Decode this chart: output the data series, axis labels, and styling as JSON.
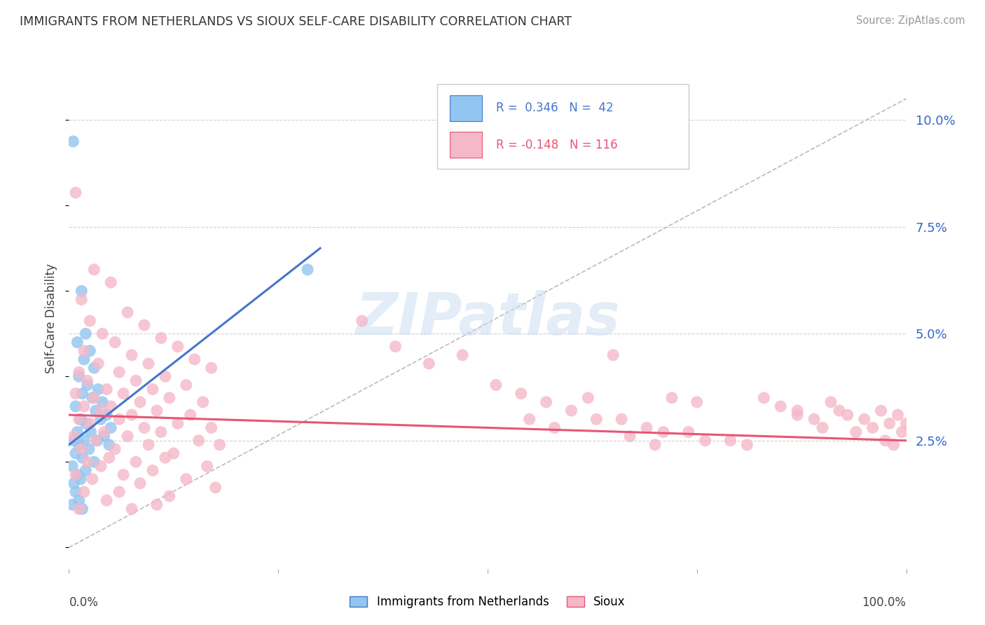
{
  "title": "IMMIGRANTS FROM NETHERLANDS VS SIOUX SELF-CARE DISABILITY CORRELATION CHART",
  "source": "Source: ZipAtlas.com",
  "ylabel": "Self-Care Disability",
  "right_yticks": [
    "10.0%",
    "7.5%",
    "5.0%",
    "2.5%"
  ],
  "right_ytick_vals": [
    0.1,
    0.075,
    0.05,
    0.025
  ],
  "xlim": [
    0.0,
    1.0
  ],
  "ylim": [
    -0.005,
    0.112
  ],
  "background_color": "#ffffff",
  "grid_color": "#cccccc",
  "watermark": "ZIPatlas",
  "blue_color": "#92C5F0",
  "pink_color": "#F5B8C8",
  "blue_line_color": "#4477CC",
  "pink_line_color": "#E85575",
  "diag_line_color": "#BBBBBB",
  "netherlands_points": [
    [
      0.005,
      0.095
    ],
    [
      0.015,
      0.06
    ],
    [
      0.02,
      0.05
    ],
    [
      0.01,
      0.048
    ],
    [
      0.025,
      0.046
    ],
    [
      0.018,
      0.044
    ],
    [
      0.03,
      0.042
    ],
    [
      0.012,
      0.04
    ],
    [
      0.022,
      0.038
    ],
    [
      0.035,
      0.037
    ],
    [
      0.016,
      0.036
    ],
    [
      0.028,
      0.035
    ],
    [
      0.04,
      0.034
    ],
    [
      0.008,
      0.033
    ],
    [
      0.032,
      0.032
    ],
    [
      0.045,
      0.031
    ],
    [
      0.014,
      0.03
    ],
    [
      0.038,
      0.03
    ],
    [
      0.02,
      0.029
    ],
    [
      0.05,
      0.028
    ],
    [
      0.01,
      0.027
    ],
    [
      0.026,
      0.027
    ],
    [
      0.042,
      0.026
    ],
    [
      0.006,
      0.025
    ],
    [
      0.018,
      0.025
    ],
    [
      0.034,
      0.025
    ],
    [
      0.048,
      0.024
    ],
    [
      0.012,
      0.024
    ],
    [
      0.024,
      0.023
    ],
    [
      0.008,
      0.022
    ],
    [
      0.016,
      0.021
    ],
    [
      0.03,
      0.02
    ],
    [
      0.004,
      0.019
    ],
    [
      0.02,
      0.018
    ],
    [
      0.01,
      0.017
    ],
    [
      0.014,
      0.016
    ],
    [
      0.006,
      0.015
    ],
    [
      0.008,
      0.013
    ],
    [
      0.012,
      0.011
    ],
    [
      0.004,
      0.01
    ],
    [
      0.016,
      0.009
    ],
    [
      0.285,
      0.065
    ]
  ],
  "sioux_points": [
    [
      0.008,
      0.083
    ],
    [
      0.03,
      0.065
    ],
    [
      0.05,
      0.062
    ],
    [
      0.015,
      0.058
    ],
    [
      0.07,
      0.055
    ],
    [
      0.025,
      0.053
    ],
    [
      0.09,
      0.052
    ],
    [
      0.04,
      0.05
    ],
    [
      0.11,
      0.049
    ],
    [
      0.055,
      0.048
    ],
    [
      0.13,
      0.047
    ],
    [
      0.018,
      0.046
    ],
    [
      0.075,
      0.045
    ],
    [
      0.15,
      0.044
    ],
    [
      0.035,
      0.043
    ],
    [
      0.095,
      0.043
    ],
    [
      0.17,
      0.042
    ],
    [
      0.012,
      0.041
    ],
    [
      0.06,
      0.041
    ],
    [
      0.115,
      0.04
    ],
    [
      0.022,
      0.039
    ],
    [
      0.08,
      0.039
    ],
    [
      0.14,
      0.038
    ],
    [
      0.045,
      0.037
    ],
    [
      0.1,
      0.037
    ],
    [
      0.008,
      0.036
    ],
    [
      0.065,
      0.036
    ],
    [
      0.12,
      0.035
    ],
    [
      0.03,
      0.035
    ],
    [
      0.085,
      0.034
    ],
    [
      0.16,
      0.034
    ],
    [
      0.018,
      0.033
    ],
    [
      0.05,
      0.033
    ],
    [
      0.105,
      0.032
    ],
    [
      0.038,
      0.032
    ],
    [
      0.075,
      0.031
    ],
    [
      0.145,
      0.031
    ],
    [
      0.012,
      0.03
    ],
    [
      0.06,
      0.03
    ],
    [
      0.13,
      0.029
    ],
    [
      0.025,
      0.029
    ],
    [
      0.09,
      0.028
    ],
    [
      0.17,
      0.028
    ],
    [
      0.042,
      0.027
    ],
    [
      0.11,
      0.027
    ],
    [
      0.006,
      0.026
    ],
    [
      0.07,
      0.026
    ],
    [
      0.155,
      0.025
    ],
    [
      0.032,
      0.025
    ],
    [
      0.095,
      0.024
    ],
    [
      0.18,
      0.024
    ],
    [
      0.015,
      0.023
    ],
    [
      0.055,
      0.023
    ],
    [
      0.125,
      0.022
    ],
    [
      0.048,
      0.021
    ],
    [
      0.115,
      0.021
    ],
    [
      0.022,
      0.02
    ],
    [
      0.08,
      0.02
    ],
    [
      0.165,
      0.019
    ],
    [
      0.038,
      0.019
    ],
    [
      0.1,
      0.018
    ],
    [
      0.008,
      0.017
    ],
    [
      0.065,
      0.017
    ],
    [
      0.14,
      0.016
    ],
    [
      0.028,
      0.016
    ],
    [
      0.085,
      0.015
    ],
    [
      0.175,
      0.014
    ],
    [
      0.018,
      0.013
    ],
    [
      0.06,
      0.013
    ],
    [
      0.12,
      0.012
    ],
    [
      0.045,
      0.011
    ],
    [
      0.105,
      0.01
    ],
    [
      0.012,
      0.009
    ],
    [
      0.075,
      0.009
    ],
    [
      0.35,
      0.053
    ],
    [
      0.39,
      0.047
    ],
    [
      0.43,
      0.043
    ],
    [
      0.47,
      0.045
    ],
    [
      0.51,
      0.038
    ],
    [
      0.54,
      0.036
    ],
    [
      0.57,
      0.034
    ],
    [
      0.6,
      0.032
    ],
    [
      0.63,
      0.03
    ],
    [
      0.66,
      0.03
    ],
    [
      0.69,
      0.028
    ],
    [
      0.71,
      0.027
    ],
    [
      0.74,
      0.027
    ],
    [
      0.76,
      0.025
    ],
    [
      0.79,
      0.025
    ],
    [
      0.81,
      0.024
    ],
    [
      0.83,
      0.035
    ],
    [
      0.85,
      0.033
    ],
    [
      0.87,
      0.032
    ],
    [
      0.89,
      0.03
    ],
    [
      0.87,
      0.031
    ],
    [
      0.9,
      0.028
    ],
    [
      0.91,
      0.034
    ],
    [
      0.92,
      0.032
    ],
    [
      0.93,
      0.031
    ],
    [
      0.94,
      0.027
    ],
    [
      0.95,
      0.03
    ],
    [
      0.96,
      0.028
    ],
    [
      0.97,
      0.032
    ],
    [
      0.975,
      0.025
    ],
    [
      0.98,
      0.029
    ],
    [
      0.985,
      0.024
    ],
    [
      0.99,
      0.031
    ],
    [
      0.995,
      0.027
    ],
    [
      1.0,
      0.029
    ],
    [
      0.55,
      0.03
    ],
    [
      0.58,
      0.028
    ],
    [
      0.62,
      0.035
    ],
    [
      0.65,
      0.045
    ],
    [
      0.67,
      0.026
    ],
    [
      0.7,
      0.024
    ],
    [
      0.72,
      0.035
    ],
    [
      0.75,
      0.034
    ]
  ],
  "blue_trendline_x": [
    0.0,
    0.3
  ],
  "blue_trendline_y": [
    0.024,
    0.07
  ],
  "pink_trendline_x": [
    0.0,
    1.0
  ],
  "pink_trendline_y": [
    0.031,
    0.025
  ]
}
